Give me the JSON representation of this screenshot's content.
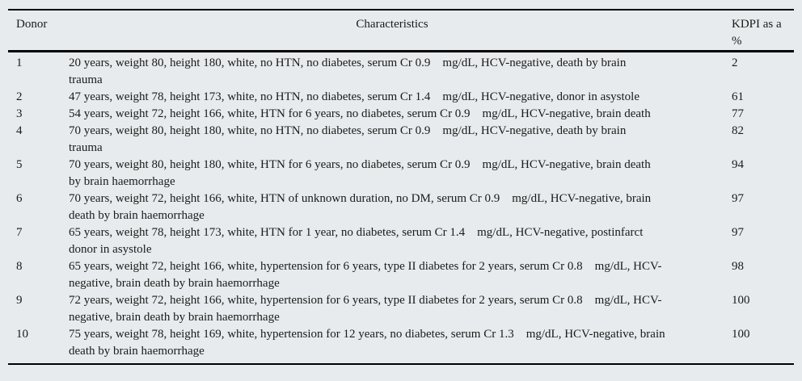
{
  "colors": {
    "background": "#e8ebed",
    "text": "#1a1a1a",
    "rule": "#000000"
  },
  "table": {
    "headers": {
      "donor": "Donor",
      "characteristics": "Characteristics",
      "kdpi": "KDPI as a %"
    },
    "rows": [
      {
        "donor": "1",
        "characteristics": "20 years, weight 80, height 180, white, no HTN, no diabetes, serum Cr 0.9    mg/dL, HCV-negative, death by brain\ntrauma",
        "kdpi": "2"
      },
      {
        "donor": "2",
        "characteristics": "47 years, weight 78, height 173, white, no HTN, no diabetes, serum Cr 1.4    mg/dL, HCV-negative, donor in asystole",
        "kdpi": "61"
      },
      {
        "donor": "3",
        "characteristics": "54 years, weight 72, height 166, white, HTN for 6 years, no diabetes, serum Cr 0.9    mg/dL, HCV-negative, brain death",
        "kdpi": "77"
      },
      {
        "donor": "4",
        "characteristics": "70 years, weight 80, height 180, white, no HTN, no diabetes, serum Cr 0.9    mg/dL, HCV-negative, death by brain\ntrauma",
        "kdpi": "82"
      },
      {
        "donor": "5",
        "characteristics": "70 years, weight 80, height 180, white, HTN for 6 years, no diabetes, serum Cr 0.9    mg/dL, HCV-negative, brain death\nby brain haemorrhage",
        "kdpi": "94"
      },
      {
        "donor": "6",
        "characteristics": "70 years, weight 72, height 166, white, HTN of unknown duration, no DM, serum Cr 0.9    mg/dL, HCV-negative, brain\ndeath by brain haemorrhage",
        "kdpi": "97"
      },
      {
        "donor": "7",
        "characteristics": "65 years, weight 78, height 173, white, HTN for 1 year, no diabetes, serum Cr 1.4    mg/dL, HCV-negative, postinfarct\ndonor in asystole",
        "kdpi": "97"
      },
      {
        "donor": "8",
        "characteristics": "65 years, weight 72, height 166, white, hypertension for 6 years, type II diabetes for 2 years, serum Cr 0.8    mg/dL, HCV-\nnegative, brain death by brain haemorrhage",
        "kdpi": "98"
      },
      {
        "donor": "9",
        "characteristics": "72 years, weight 72, height 166, white, hypertension for 6 years, type II diabetes for 2 years, serum Cr 0.8    mg/dL, HCV-\nnegative, brain death by brain haemorrhage",
        "kdpi": "100"
      },
      {
        "donor": "10",
        "characteristics": "75 years, weight 78, height 169, white, hypertension for 12 years, no diabetes, serum Cr 1.3    mg/dL, HCV-negative, brain\ndeath by brain haemorrhage",
        "kdpi": "100"
      }
    ]
  }
}
